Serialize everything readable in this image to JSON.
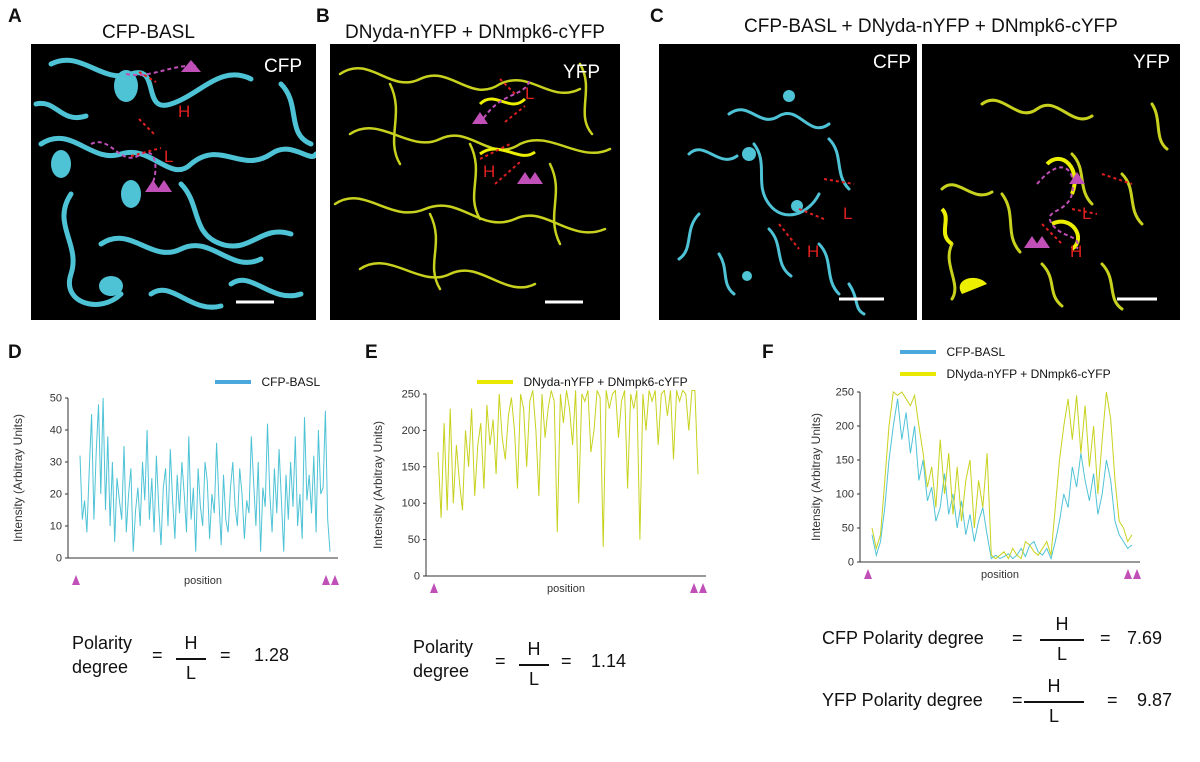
{
  "panels": {
    "A": {
      "letter": "A",
      "title": "CFP-BASL",
      "channel": "CFP",
      "label_h": "H",
      "label_l": "L"
    },
    "B": {
      "letter": "B",
      "title": "DNyda-nYFP + DNmpk6-cYFP",
      "channel": "YFP",
      "label_h": "H",
      "label_l": "L"
    },
    "C": {
      "letter": "C",
      "title": "CFP-BASL + DNyda-nYFP + DNmpk6-cYFP",
      "channel_left": "CFP",
      "channel_right": "YFP",
      "label_h": "H",
      "label_l": "L"
    },
    "D": {
      "letter": "D",
      "legend": "CFP-BASL",
      "ylabel": "Intensity (Arbitray Units)",
      "xlabel": "position",
      "formula_left_1": "Polarity",
      "formula_left_2": "degree",
      "eq": "=",
      "num": "H",
      "den": "L",
      "value": "1.28"
    },
    "E": {
      "letter": "E",
      "legend": "DNyda-nYFP + DNmpk6-cYFP",
      "ylabel": "Intensity (Arbitray Units)",
      "xlabel": "position",
      "formula_left_1": "Polarity",
      "formula_left_2": "degree",
      "eq": "=",
      "num": "H",
      "den": "L",
      "value": "1.14"
    },
    "F": {
      "letter": "F",
      "legend_1": "CFP-BASL",
      "legend_2": "DNyda-nYFP + DNmpk6-cYFP",
      "ylabel": "Intensity (Arbitray Units)",
      "xlabel": "position",
      "cfp_label": "CFP Polarity degree",
      "yfp_label": "YFP Polarity degree",
      "eq": "=",
      "num": "H",
      "den": "L",
      "cfp_value": "7.69",
      "yfp_value": "9.87"
    }
  },
  "colors": {
    "cfp": "#4fc3d6",
    "yfp": "#c8d21e",
    "legend_cfp": "#4aa8dc",
    "legend_yfp": "#e8e800",
    "marker": "#c04fb8",
    "red": "#e02020"
  },
  "chart_data": [
    {
      "type": "line",
      "id": "D",
      "title": "",
      "xlabel": "position",
      "ylabel": "Intensity (Arbitray Units)",
      "ylim": [
        0,
        50
      ],
      "yticks": [
        0,
        10,
        20,
        30,
        40,
        50
      ],
      "series": [
        {
          "name": "CFP-BASL",
          "color": "#4fc3d6",
          "values": [
            32,
            12,
            18,
            8,
            28,
            45,
            12,
            33,
            48,
            20,
            50,
            15,
            38,
            10,
            30,
            5,
            25,
            18,
            12,
            35,
            8,
            20,
            28,
            2,
            15,
            22,
            10,
            30,
            18,
            40,
            12,
            25,
            8,
            32,
            16,
            4,
            22,
            28,
            10,
            34,
            18,
            6,
            26,
            14,
            30,
            20,
            8,
            38,
            12,
            22,
            2,
            28,
            16,
            10,
            30,
            24,
            6,
            20,
            14,
            36,
            18,
            4,
            26,
            12,
            8,
            22,
            30,
            16,
            10,
            28,
            20,
            6,
            18,
            14,
            38,
            24,
            10,
            30,
            2,
            22,
            16,
            42,
            20,
            8,
            28,
            14,
            34,
            18,
            2,
            26,
            12,
            30,
            16,
            38,
            10,
            20,
            6,
            44,
            18,
            26,
            14,
            32,
            8,
            40,
            20,
            22,
            46,
            12,
            2
          ]
        }
      ]
    },
    {
      "type": "line",
      "id": "E",
      "title": "",
      "xlabel": "position",
      "ylabel": "Intensity (Arbitray Units)",
      "ylim": [
        0,
        250
      ],
      "yticks": [
        0,
        50,
        100,
        150,
        200,
        250
      ],
      "series": [
        {
          "name": "DNyda-nYFP + DNmpk6-cYFP",
          "color": "#c8d21e",
          "values": [
            170,
            80,
            210,
            90,
            230,
            100,
            180,
            130,
            90,
            200,
            150,
            230,
            110,
            180,
            210,
            120,
            235,
            180,
            215,
            140,
            250,
            190,
            160,
            220,
            245,
            200,
            120,
            250,
            230,
            150,
            240,
            255,
            200,
            110,
            250,
            190,
            230,
            255,
            240,
            60,
            250,
            210,
            255,
            230,
            180,
            255,
            100,
            250,
            240,
            255,
            170,
            200,
            255,
            245,
            40,
            255,
            230,
            250,
            255,
            190,
            240,
            255,
            120,
            250,
            230,
            255,
            50,
            250,
            200,
            255,
            240,
            255,
            180,
            250,
            255,
            220,
            255,
            160,
            255,
            240,
            255,
            250,
            200,
            255,
            255,
            140
          ]
        }
      ]
    },
    {
      "type": "line",
      "id": "F",
      "title": "",
      "xlabel": "position",
      "ylabel": "Intensity (Arbitray Units)",
      "ylim": [
        0,
        250
      ],
      "yticks": [
        0,
        50,
        100,
        150,
        200,
        250
      ],
      "series": [
        {
          "name": "CFP-BASL",
          "color": "#4fc3d6",
          "values": [
            40,
            10,
            30,
            80,
            150,
            200,
            240,
            180,
            220,
            160,
            200,
            120,
            150,
            90,
            110,
            60,
            80,
            130,
            70,
            100,
            50,
            90,
            40,
            70,
            30,
            60,
            80,
            40,
            5,
            10,
            5,
            8,
            12,
            5,
            10,
            20,
            8,
            25,
            30,
            15,
            10,
            20,
            5,
            30,
            60,
            100,
            80,
            140,
            110,
            160,
            120,
            90,
            130,
            70,
            100,
            150,
            120,
            60,
            40,
            30,
            20,
            25
          ]
        },
        {
          "name": "DNyda-nYFP + DNmpk6-cYFP",
          "color": "#c8d21e",
          "values": [
            50,
            20,
            40,
            120,
            200,
            250,
            245,
            250,
            240,
            230,
            245,
            200,
            160,
            110,
            140,
            80,
            180,
            100,
            160,
            70,
            140,
            60,
            120,
            150,
            50,
            120,
            80,
            160,
            10,
            5,
            10,
            15,
            5,
            20,
            10,
            5,
            30,
            25,
            15,
            10,
            20,
            30,
            10,
            80,
            150,
            200,
            240,
            180,
            245,
            160,
            230,
            140,
            200,
            100,
            180,
            250,
            210,
            120,
            60,
            50,
            30,
            40
          ]
        }
      ]
    }
  ]
}
